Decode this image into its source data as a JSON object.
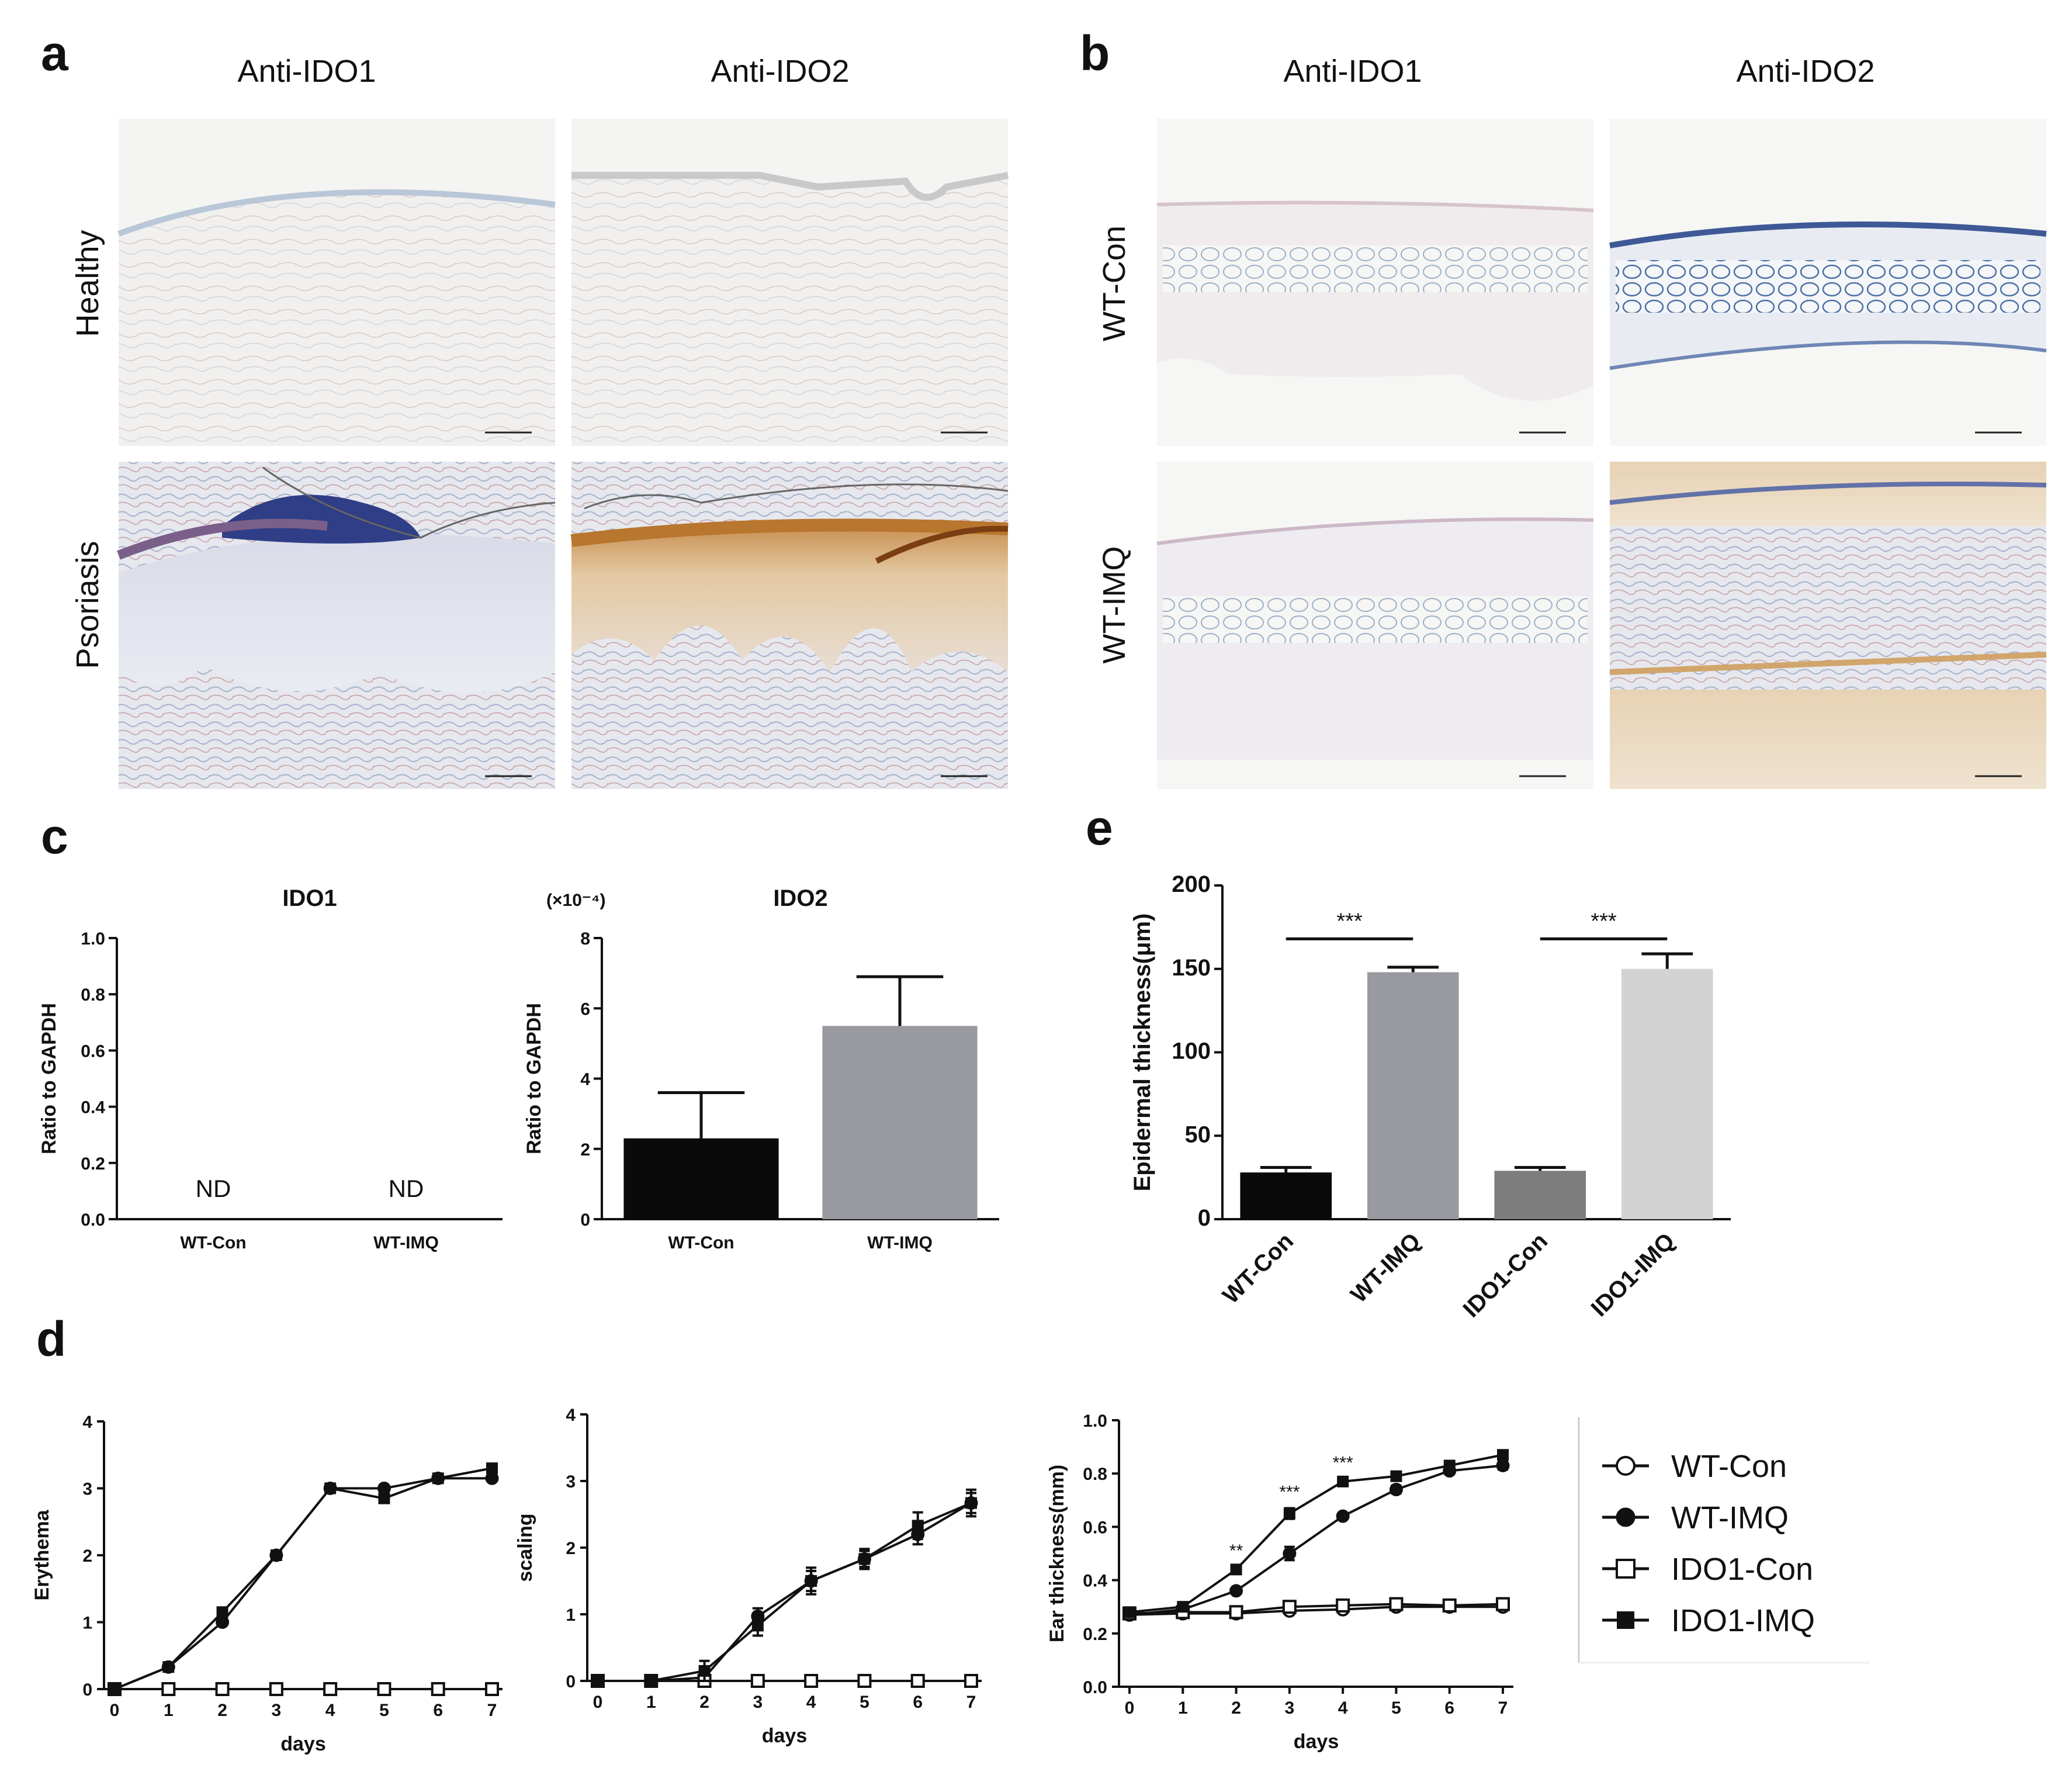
{
  "panels": {
    "a": {
      "label": "a",
      "columns": [
        "Anti-IDO1",
        "Anti-IDO2"
      ],
      "rows": [
        "Healthy",
        "Psoriasis"
      ]
    },
    "b": {
      "label": "b",
      "columns": [
        "Anti-IDO1",
        "Anti-IDO2"
      ],
      "rows": [
        "WT-Con",
        "WT-IMQ"
      ]
    },
    "c": {
      "label": "c"
    },
    "d": {
      "label": "d"
    },
    "e": {
      "label": "e"
    }
  },
  "colors": {
    "ihc_background": "#f3f2f1",
    "dab_brown": "#c99a63",
    "hematoxylin_blue": "#5c74b0",
    "bar_black": "#0a0a0a",
    "bar_gray": "#999a9f",
    "bar_dark_gray": "#7d7d7d",
    "bar_light_gray": "#d3d3d3"
  },
  "chart_data": [
    {
      "id": "c_ido1",
      "type": "bar",
      "title": "IDO1",
      "ylabel": "Ratio to GAPDH",
      "categories": [
        "WT-Con",
        "WT-IMQ"
      ],
      "values": [
        null,
        null
      ],
      "annotations": [
        "ND",
        "ND"
      ],
      "ylim": [
        0,
        1.0
      ],
      "yticks": [
        "0.0",
        "0.2",
        "0.4",
        "0.6",
        "0.8",
        "1.0"
      ]
    },
    {
      "id": "c_ido2",
      "type": "bar",
      "title": "IDO2",
      "scale_note": "(×10⁻⁴)",
      "ylabel": "Ratio to GAPDH",
      "categories": [
        "WT-Con",
        "WT-IMQ"
      ],
      "values": [
        2.3,
        5.5
      ],
      "errors": [
        1.3,
        1.4
      ],
      "ylim": [
        0,
        8
      ],
      "yticks": [
        "0",
        "2",
        "4",
        "6",
        "8"
      ]
    },
    {
      "id": "e",
      "type": "bar",
      "ylabel": "Epidermal thickness(μm)",
      "categories": [
        "WT-Con",
        "WT-IMQ",
        "IDO1-Con",
        "IDO1-IMQ"
      ],
      "values": [
        28,
        148,
        29,
        150
      ],
      "errors": [
        3,
        3,
        2,
        9
      ],
      "ylim": [
        0,
        200
      ],
      "yticks": [
        "0",
        "50",
        "100",
        "150",
        "200"
      ],
      "significance": [
        {
          "from": 0,
          "to": 1,
          "label": "***"
        },
        {
          "from": 2,
          "to": 3,
          "label": "***"
        }
      ]
    },
    {
      "id": "d_erythema",
      "type": "line",
      "xlabel": "days",
      "ylabel": "Erythema",
      "x": [
        0,
        1,
        2,
        3,
        4,
        5,
        6,
        7
      ],
      "ylim": [
        0,
        4
      ],
      "yticks": [
        "0",
        "1",
        "2",
        "3",
        "4"
      ],
      "series": [
        {
          "name": "WT-Con",
          "marker": "circle-open",
          "values": [
            0,
            0,
            0,
            0,
            0,
            0,
            0,
            0
          ]
        },
        {
          "name": "WT-IMQ",
          "marker": "circle-filled",
          "values": [
            0,
            0.33,
            1.0,
            2.0,
            3.0,
            3.0,
            3.15,
            3.15
          ]
        },
        {
          "name": "IDO1-Con",
          "marker": "square-open",
          "values": [
            0,
            0,
            0,
            0,
            0,
            0,
            0,
            0
          ]
        },
        {
          "name": "IDO1-IMQ",
          "marker": "square-filled",
          "values": [
            0,
            0.33,
            1.15,
            2.0,
            3.0,
            2.85,
            3.15,
            3.3
          ]
        }
      ]
    },
    {
      "id": "d_scaling",
      "type": "line",
      "xlabel": "days",
      "ylabel": "scaling",
      "x": [
        0,
        1,
        2,
        3,
        4,
        5,
        6,
        7
      ],
      "ylim": [
        0,
        4
      ],
      "yticks": [
        "0",
        "1",
        "2",
        "3",
        "4"
      ],
      "series": [
        {
          "name": "WT-Con",
          "marker": "circle-open",
          "values": [
            0,
            0,
            0,
            0,
            0,
            0,
            0,
            0
          ]
        },
        {
          "name": "WT-IMQ",
          "marker": "circle-filled",
          "values": [
            0,
            0,
            0.05,
            0.97,
            1.5,
            1.83,
            2.2,
            2.67
          ],
          "errors": [
            0,
            0,
            0.1,
            0.12,
            0.15,
            0.12,
            0.15,
            0.15
          ]
        },
        {
          "name": "IDO1-Con",
          "marker": "square-open",
          "values": [
            0,
            0,
            0,
            0,
            0,
            0,
            0,
            0
          ]
        },
        {
          "name": "IDO1-IMQ",
          "marker": "square-filled",
          "values": [
            0,
            0,
            0.15,
            0.83,
            1.5,
            1.83,
            2.33,
            2.67
          ],
          "errors": [
            0,
            0,
            0.15,
            0.15,
            0.2,
            0.15,
            0.2,
            0.2
          ]
        }
      ]
    },
    {
      "id": "d_ear",
      "type": "line",
      "xlabel": "days",
      "ylabel": "Ear thickness(mm)",
      "x": [
        0,
        1,
        2,
        3,
        4,
        5,
        6,
        7
      ],
      "ylim": [
        0,
        1.0
      ],
      "yticks": [
        "0.0",
        "0.2",
        "0.4",
        "0.6",
        "0.8",
        "1.0"
      ],
      "series": [
        {
          "name": "WT-Con",
          "marker": "circle-open",
          "values": [
            0.27,
            0.275,
            0.275,
            0.285,
            0.29,
            0.3,
            0.3,
            0.3
          ]
        },
        {
          "name": "WT-IMQ",
          "marker": "circle-filled",
          "values": [
            0.27,
            0.29,
            0.36,
            0.5,
            0.64,
            0.74,
            0.81,
            0.83
          ],
          "errors": [
            0.01,
            0.01,
            0.01,
            0.025,
            0.01,
            0.015,
            0.01,
            0.015
          ]
        },
        {
          "name": "IDO1-Con",
          "marker": "square-open",
          "values": [
            0.275,
            0.28,
            0.28,
            0.3,
            0.305,
            0.31,
            0.305,
            0.31
          ]
        },
        {
          "name": "IDO1-IMQ",
          "marker": "square-filled",
          "values": [
            0.28,
            0.3,
            0.44,
            0.65,
            0.77,
            0.79,
            0.83,
            0.87
          ],
          "errors": [
            0.01,
            0.01,
            0.01,
            0.02,
            0.01,
            0.01,
            0.01,
            0.015
          ]
        }
      ],
      "significance": [
        {
          "x": 2,
          "label": "**"
        },
        {
          "x": 3,
          "label": "***"
        },
        {
          "x": 4,
          "label": "***"
        }
      ]
    }
  ],
  "legend": {
    "entries": [
      {
        "name": "WT-Con",
        "marker": "circle-open"
      },
      {
        "name": "WT-IMQ",
        "marker": "circle-filled"
      },
      {
        "name": "IDO1-Con",
        "marker": "square-open"
      },
      {
        "name": "IDO1-IMQ",
        "marker": "square-filled"
      }
    ]
  }
}
